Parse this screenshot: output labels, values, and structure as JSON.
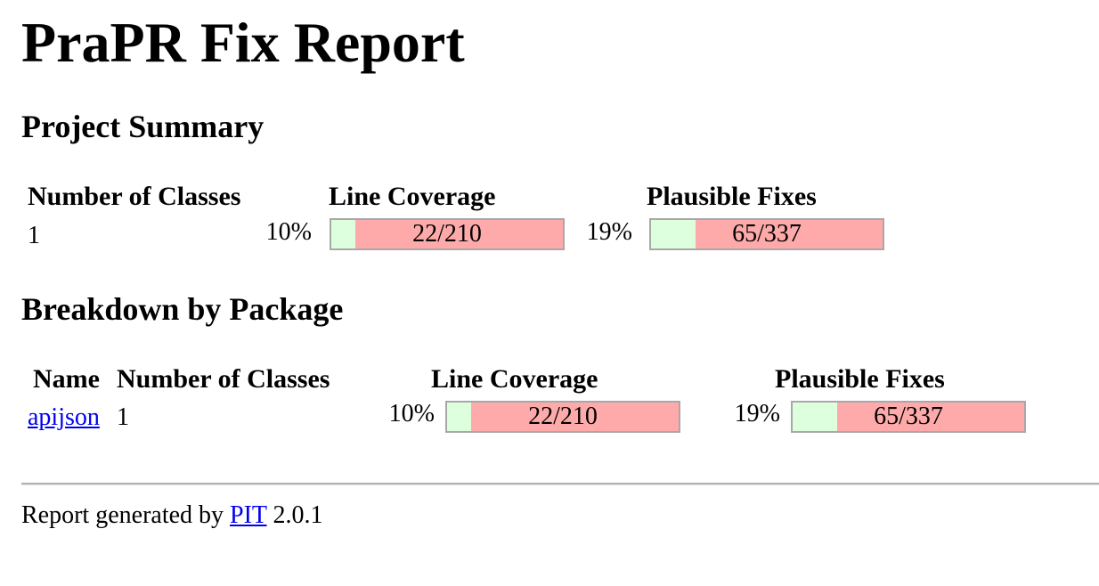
{
  "page": {
    "title": "PraPR Fix Report"
  },
  "project_summary": {
    "heading": "Project Summary",
    "col_classes": "Number of Classes",
    "col_line_coverage": "Line Coverage",
    "col_plausible_fixes": "Plausible Fixes",
    "classes": "1",
    "line_coverage": {
      "percent_label": "10%",
      "ratio_label": "22/210",
      "fraction": 0.105
    },
    "plausible_fixes": {
      "percent_label": "19%",
      "ratio_label": "65/337",
      "fraction": 0.193
    }
  },
  "breakdown": {
    "heading": "Breakdown by Package",
    "col_name": "Name",
    "col_classes": "Number of Classes",
    "col_line_coverage": "Line Coverage",
    "col_plausible_fixes": "Plausible Fixes",
    "rows": [
      {
        "name": "apijson",
        "classes": "1",
        "line_coverage": {
          "percent_label": "10%",
          "ratio_label": "22/210",
          "fraction": 0.105
        },
        "plausible_fixes": {
          "percent_label": "19%",
          "ratio_label": "65/337",
          "fraction": 0.193
        }
      }
    ]
  },
  "footer": {
    "prefix": "Report generated by",
    "link_text": "PIT",
    "version": "2.0.1"
  },
  "colors": {
    "covered": "#ddffdd",
    "uncovered": "#ffaaaa",
    "link": "#0000ee"
  }
}
